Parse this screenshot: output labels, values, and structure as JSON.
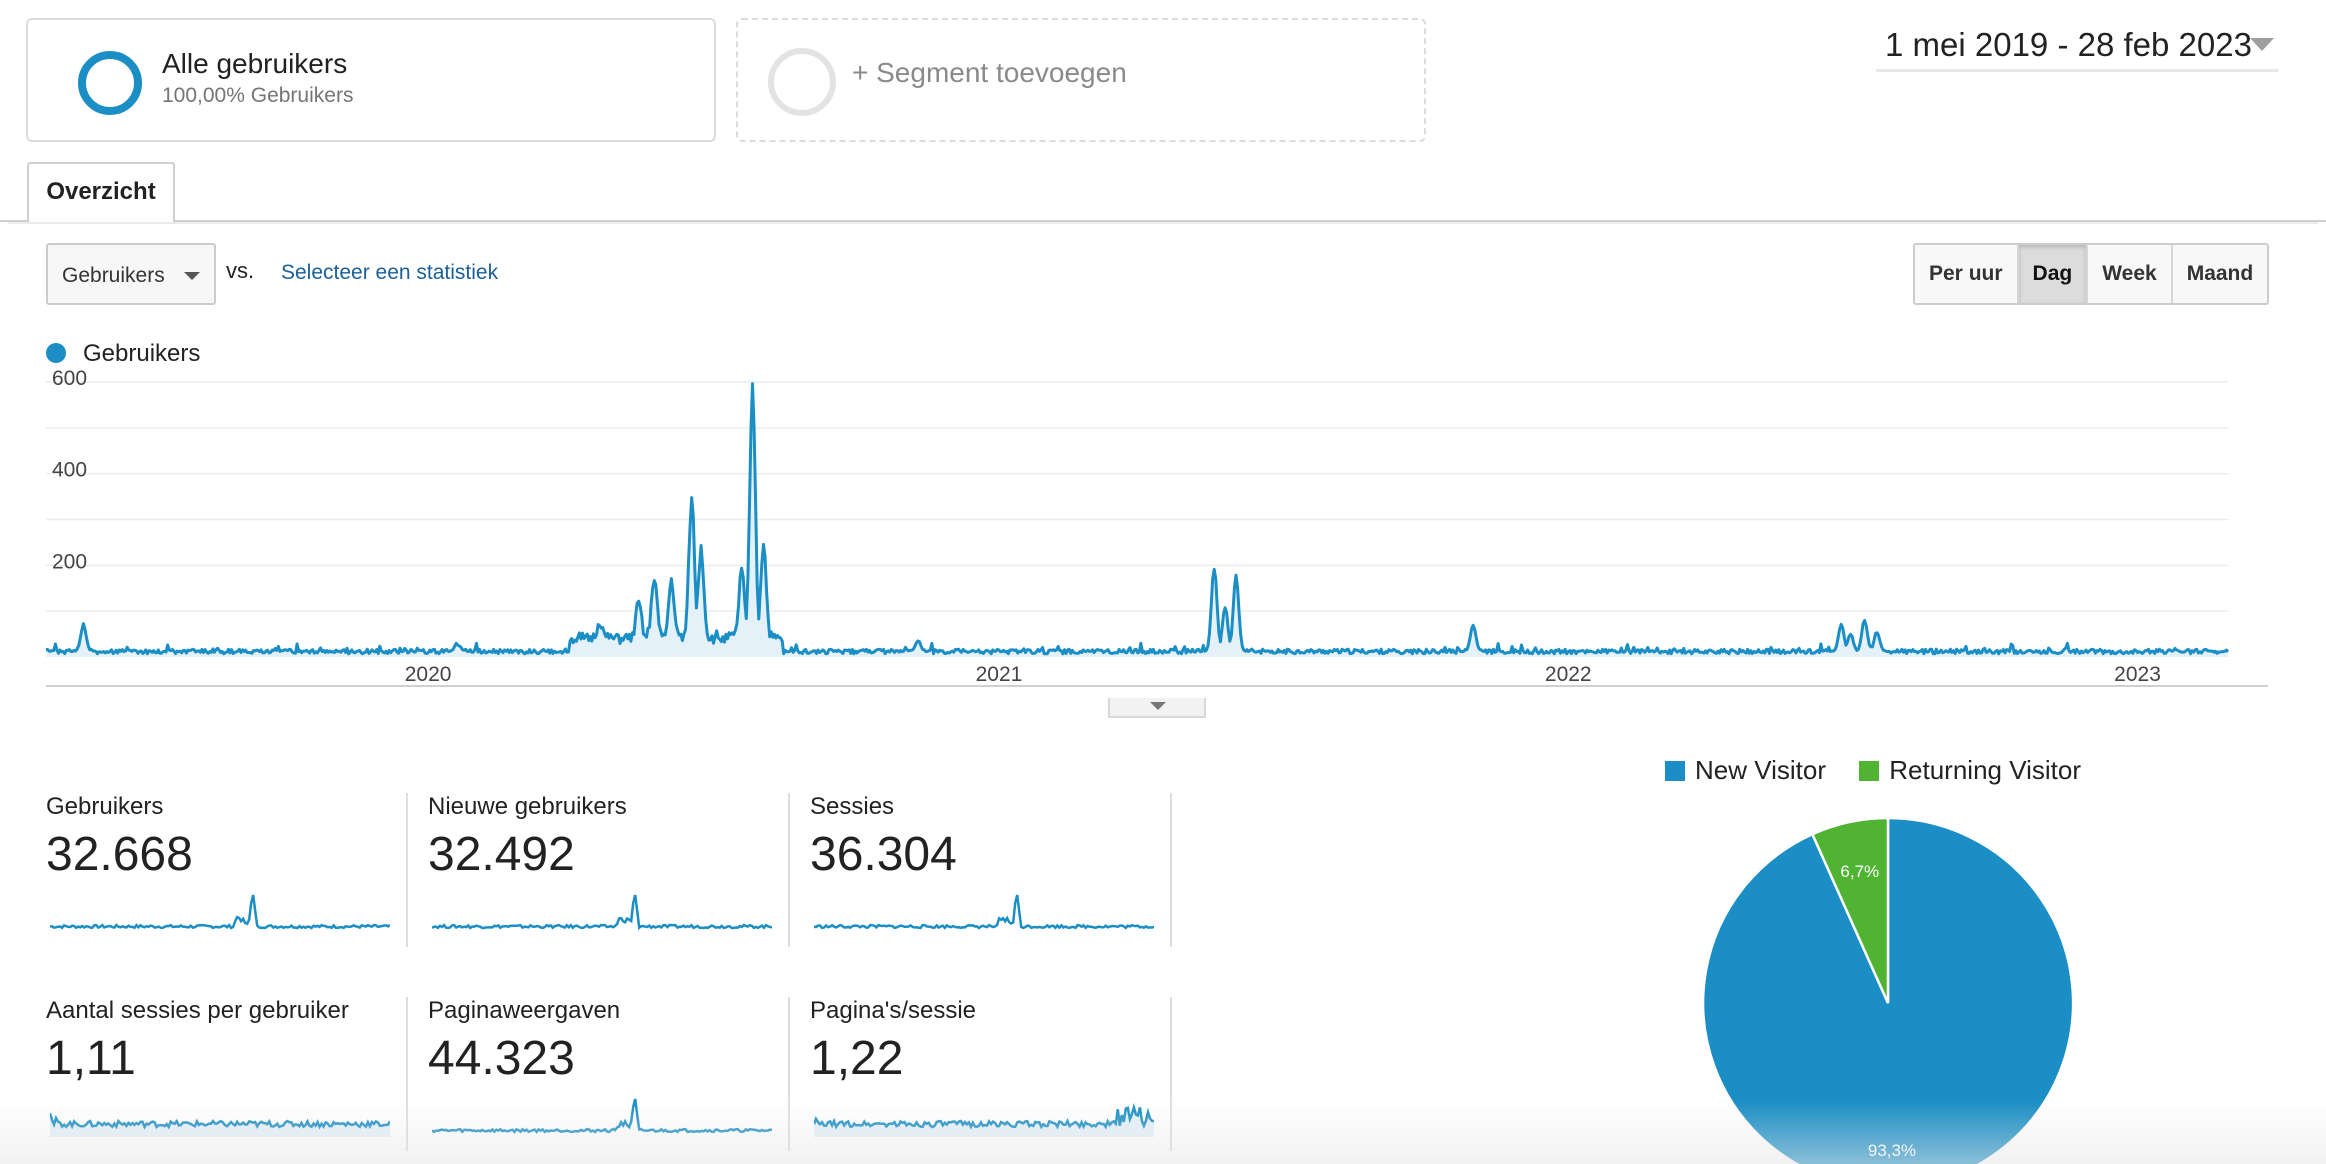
{
  "segments": {
    "active": {
      "title": "Alle gebruikers",
      "subtitle": "100,00% Gebruikers"
    },
    "add_label": "+ Segment toevoegen"
  },
  "date_range": "1 mei 2019 - 28 feb 2023",
  "tabs": [
    {
      "label": "Overzicht",
      "active": true
    }
  ],
  "controls": {
    "metric_select": "Gebruikers",
    "vs_label": "vs.",
    "select_statistic": "Selecteer een statistiek",
    "granularity": [
      {
        "label": "Per uur",
        "active": false
      },
      {
        "label": "Dag",
        "active": true
      },
      {
        "label": "Week",
        "active": false
      },
      {
        "label": "Maand",
        "active": false
      }
    ]
  },
  "colors": {
    "accent": "#1a8ec5",
    "returning": "#50b432",
    "fill": "#e4f1f8"
  },
  "chart_data": [
    {
      "type": "area",
      "series": [
        {
          "name": "Gebruikers"
        }
      ],
      "y_ticks": [
        "600",
        "400",
        "200"
      ],
      "ylim": [
        0,
        600
      ],
      "x_ticks": [
        "2020",
        "2021",
        "2022",
        "2023"
      ],
      "xlim": [
        "2019-05-01",
        "2023-02-28"
      ],
      "grid": true,
      "legend": "top-left",
      "baseline": 12,
      "spikes": [
        {
          "date": "2019-05-25",
          "value": 70
        },
        {
          "date": "2020-01-20",
          "value": 30
        },
        {
          "date": "2020-04-20",
          "value": 50
        },
        {
          "date": "2020-05-15",
          "value": 90
        },
        {
          "date": "2020-05-25",
          "value": 150
        },
        {
          "date": "2020-06-05",
          "value": 140
        },
        {
          "date": "2020-06-18",
          "value": 320
        },
        {
          "date": "2020-06-24",
          "value": 210
        },
        {
          "date": "2020-07-20",
          "value": 160
        },
        {
          "date": "2020-07-27",
          "value": 560
        },
        {
          "date": "2020-08-03",
          "value": 220
        },
        {
          "date": "2020-11-10",
          "value": 35
        },
        {
          "date": "2021-05-19",
          "value": 195
        },
        {
          "date": "2021-05-26",
          "value": 110
        },
        {
          "date": "2021-06-02",
          "value": 175
        },
        {
          "date": "2021-11-01",
          "value": 70
        },
        {
          "date": "2022-06-25",
          "value": 70
        },
        {
          "date": "2022-07-01",
          "value": 50
        },
        {
          "date": "2022-07-10",
          "value": 80
        },
        {
          "date": "2022-07-18",
          "value": 55
        }
      ]
    },
    {
      "type": "pie",
      "legend": "top",
      "slices": [
        {
          "name": "New Visitor",
          "value": 93.3,
          "label": "93,3%"
        },
        {
          "name": "Returning Visitor",
          "value": 6.7,
          "label": "6,7%"
        }
      ]
    }
  ],
  "metrics": [
    {
      "label": "Gebruikers",
      "value": "32.668",
      "spark": "spiky"
    },
    {
      "label": "Nieuwe gebruikers",
      "value": "32.492",
      "spark": "spiky"
    },
    {
      "label": "Sessies",
      "value": "36.304",
      "spark": "spiky"
    },
    {
      "label": "Aantal sessies per gebruiker",
      "value": "1,11",
      "spark": "flat"
    },
    {
      "label": "Paginaweergaven",
      "value": "44.323",
      "spark": "spiky"
    },
    {
      "label": "Pagina's/sessie",
      "value": "1,22",
      "spark": "flat-rising"
    }
  ]
}
